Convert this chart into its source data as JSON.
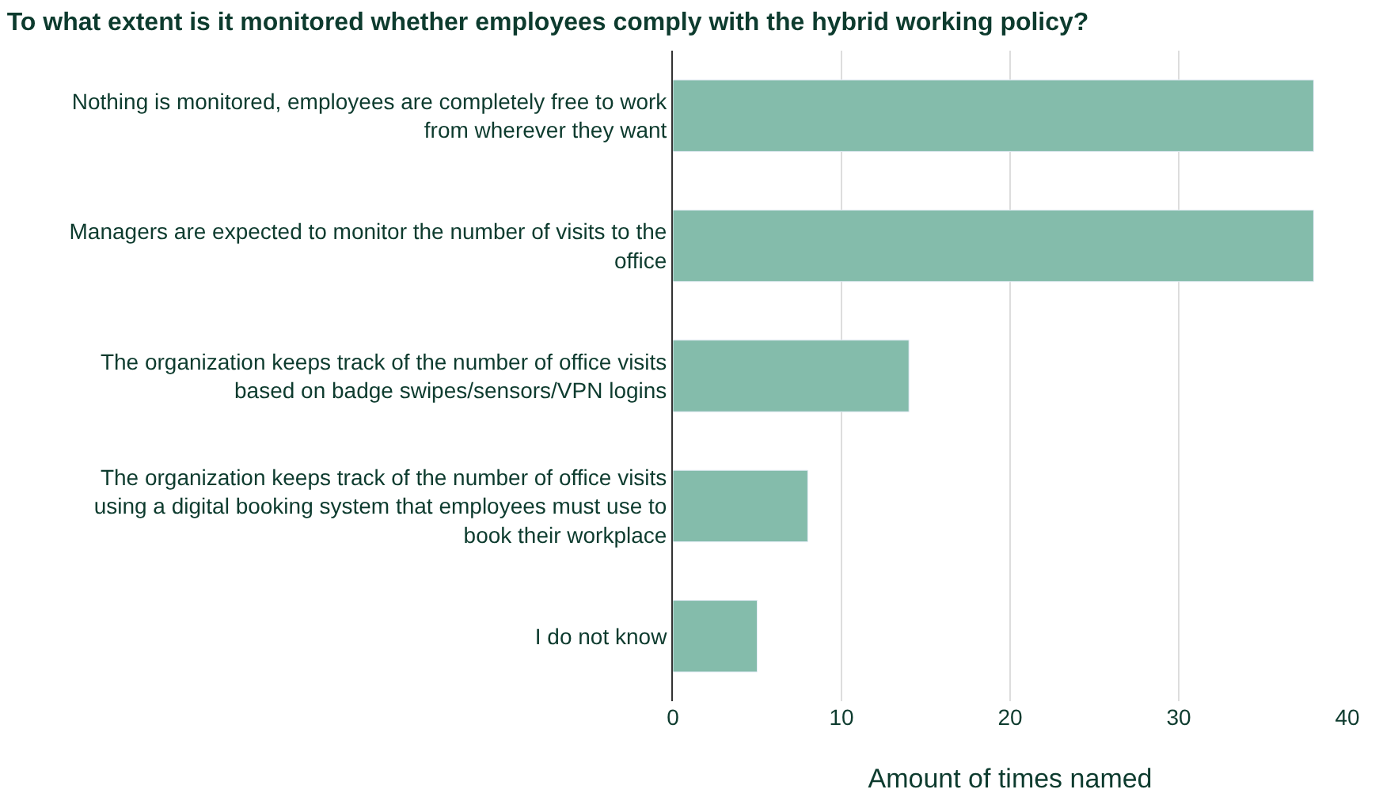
{
  "chart_data": {
    "type": "bar",
    "orientation": "horizontal",
    "title": "To what extent is it monitored whether employees comply with the hybrid working policy?",
    "categories": [
      "Nothing is monitored, employees are completely free to work\nfrom wherever they want",
      "Managers are expected to monitor the number of visits to the\noffice",
      "The organization keeps track of the number of office visits\nbased on badge swipes/sensors/VPN logins",
      "The organization keeps track of the number of office visits\nusing a digital booking system that employees must use to\nbook their workplace",
      "I do not know"
    ],
    "values": [
      38,
      38,
      14,
      8,
      5
    ],
    "color": "#84bcab",
    "xlim": [
      0,
      40
    ],
    "xticks": [
      0,
      10,
      20,
      30,
      40
    ],
    "xlabel": "Amount of times named",
    "grid": "x"
  }
}
